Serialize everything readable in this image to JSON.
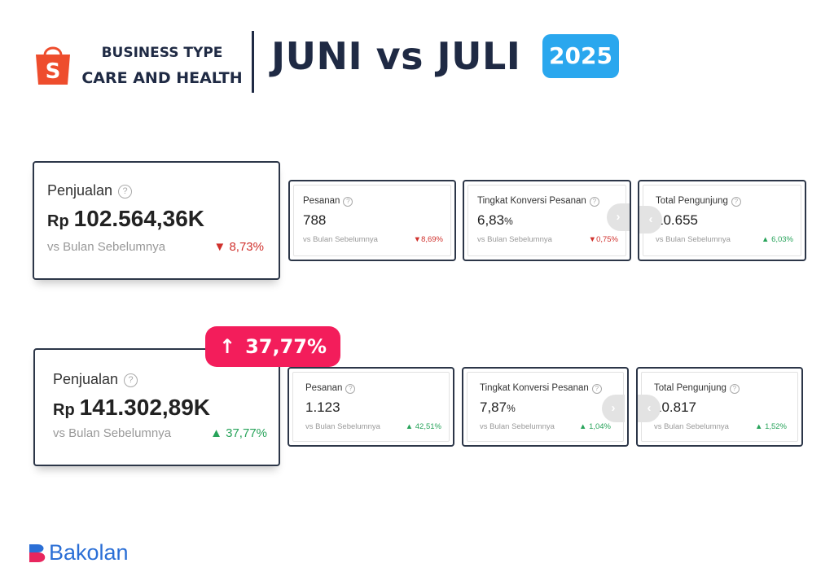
{
  "header": {
    "business_type_line1": "BUSINESS TYPE",
    "business_type_line2": "CARE AND HEALTH",
    "headline": "JUNI vs JULI",
    "year": "2025",
    "shopee_logo_letter": "S"
  },
  "june": {
    "sales": {
      "title": "Penjualan",
      "currency": "Rp",
      "value": "102.564,36K",
      "compare": "vs Bulan Sebelumnya",
      "change": "8,73%",
      "direction": "down"
    },
    "orders": {
      "title": "Pesanan",
      "value": "788",
      "compare": "vs Bulan Sebelumnya",
      "change": "8,69%",
      "direction": "down"
    },
    "conversion": {
      "title": "Tingkat Konversi Pesanan",
      "value": "6,83",
      "unit": "%",
      "compare": "vs Bulan Sebelumnya",
      "change": "0,75%",
      "direction": "down"
    },
    "visitors": {
      "title": "Total Pengunjung",
      "value": "10.655",
      "compare": "vs Bulan Sebelumnya",
      "change": "6,03%",
      "direction": "up"
    }
  },
  "july": {
    "highlight": "37,77%",
    "sales": {
      "title": "Penjualan",
      "currency": "Rp",
      "value": "141.302,89K",
      "compare": "vs Bulan Sebelumnya",
      "change": "37,77%",
      "direction": "up"
    },
    "orders": {
      "title": "Pesanan",
      "value": "1.123",
      "compare": "vs Bulan Sebelumnya",
      "change": "42,51%",
      "direction": "up"
    },
    "conversion": {
      "title": "Tingkat Konversi Pesanan",
      "value": "7,87",
      "unit": "%",
      "compare": "vs Bulan Sebelumnya",
      "change": "1,04%",
      "direction": "up"
    },
    "visitors": {
      "title": "Total Pengunjung",
      "value": "10.817",
      "compare": "vs Bulan Sebelumnya",
      "change": "1,52%",
      "direction": "up"
    }
  },
  "footer": {
    "brand": "Bakolan"
  },
  "colors": {
    "navy": "#1f2a44",
    "shopee_orange": "#ee4d2d",
    "year_blue": "#2aa7ee",
    "highlight_pink": "#f31d5b",
    "down_red": "#d0312d",
    "up_green": "#27a35a",
    "bakolan_blue": "#2b6fd6"
  },
  "icons": {
    "help": "question-circle-icon",
    "down": "triangle-down-icon",
    "up": "triangle-up-icon",
    "next": "chevron-right-icon",
    "prev": "chevron-left-icon",
    "highlight": "arrow-up-icon"
  }
}
